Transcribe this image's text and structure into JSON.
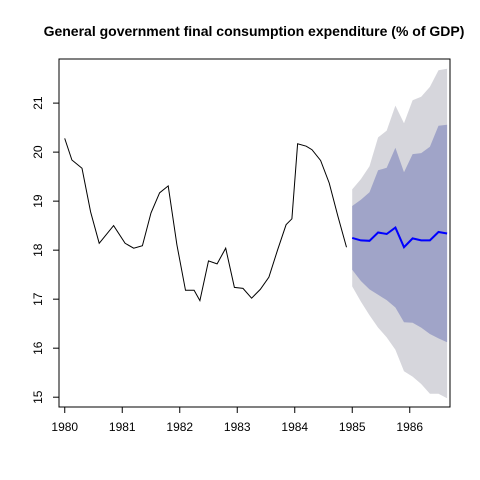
{
  "chart_data": {
    "type": "line",
    "title": "General government final consumption expenditure (% of GDP)",
    "xlabel": "",
    "ylabel": "",
    "xlim": [
      1979.9,
      1986.7
    ],
    "ylim": [
      14.8,
      21.9
    ],
    "grid": false,
    "legend": "none",
    "x_ticks": [
      1980,
      1981,
      1982,
      1983,
      1984,
      1985,
      1986
    ],
    "x_tick_labels": [
      "1980",
      "1981",
      "1982",
      "1983",
      "1984",
      "1985",
      "1986"
    ],
    "y_ticks": [
      15,
      16,
      17,
      18,
      19,
      20,
      21
    ],
    "y_tick_labels": [
      "15",
      "16",
      "17",
      "18",
      "19",
      "20",
      "21"
    ],
    "colors": {
      "history": "#000000",
      "forecast": "#0000ff",
      "band_80": "#a0a4c8",
      "band_95": "#d6d6dc"
    },
    "history": {
      "x": [
        1980.0,
        1980.125,
        1980.3,
        1980.45,
        1980.6,
        1980.85,
        1981.05,
        1981.2,
        1981.35,
        1981.5,
        1981.65,
        1981.8,
        1981.95,
        1982.1,
        1982.25,
        1982.35,
        1982.5,
        1982.65,
        1982.8,
        1982.95,
        1983.1,
        1983.25,
        1983.4,
        1983.55,
        1983.7,
        1983.85,
        1983.95,
        1984.05,
        1984.2,
        1984.3,
        1984.45,
        1984.6,
        1984.75,
        1984.9
      ],
      "values": [
        20.28,
        19.84,
        19.67,
        18.78,
        18.14,
        18.5,
        18.14,
        18.04,
        18.09,
        18.76,
        19.17,
        19.31,
        18.11,
        17.18,
        17.18,
        16.97,
        17.78,
        17.72,
        18.04,
        17.24,
        17.22,
        17.02,
        17.2,
        17.45,
        18.0,
        18.52,
        18.64,
        20.17,
        20.12,
        20.05,
        19.83,
        19.37,
        18.69,
        18.06
      ]
    },
    "forecast": {
      "x": [
        1985.0,
        1985.15,
        1985.3,
        1985.45,
        1985.6,
        1985.75,
        1985.9,
        1986.05,
        1986.2,
        1986.35,
        1986.5,
        1986.65
      ],
      "values": [
        18.25,
        18.2,
        18.19,
        18.36,
        18.33,
        18.46,
        18.06,
        18.24,
        18.2,
        18.2,
        18.37,
        18.34
      ],
      "lo80": [
        17.6,
        17.37,
        17.2,
        17.09,
        16.98,
        16.83,
        16.53,
        16.52,
        16.42,
        16.29,
        16.2,
        16.12
      ],
      "hi80": [
        18.9,
        19.03,
        19.18,
        19.63,
        19.68,
        20.09,
        19.59,
        19.96,
        19.98,
        20.11,
        20.54,
        20.56
      ],
      "lo95": [
        17.26,
        16.95,
        16.67,
        16.42,
        16.22,
        15.97,
        15.53,
        15.42,
        15.27,
        15.07,
        15.07,
        14.98
      ],
      "hi95": [
        19.24,
        19.45,
        19.71,
        20.3,
        20.44,
        20.95,
        20.59,
        21.06,
        21.13,
        21.33,
        21.67,
        21.7
      ]
    }
  }
}
